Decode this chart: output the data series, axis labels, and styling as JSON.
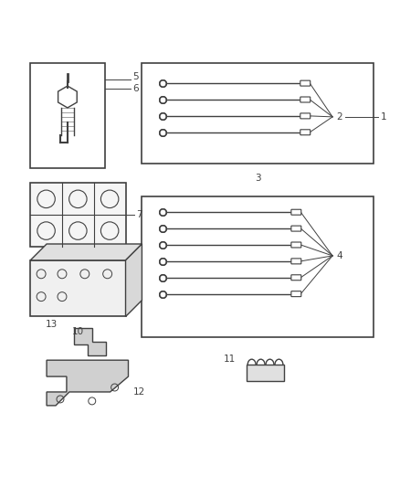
{
  "background_color": "#ffffff",
  "fig_width": 4.39,
  "fig_height": 5.33,
  "dpi": 100,
  "line_color": "#404040",
  "label_fontsize": 7.5
}
